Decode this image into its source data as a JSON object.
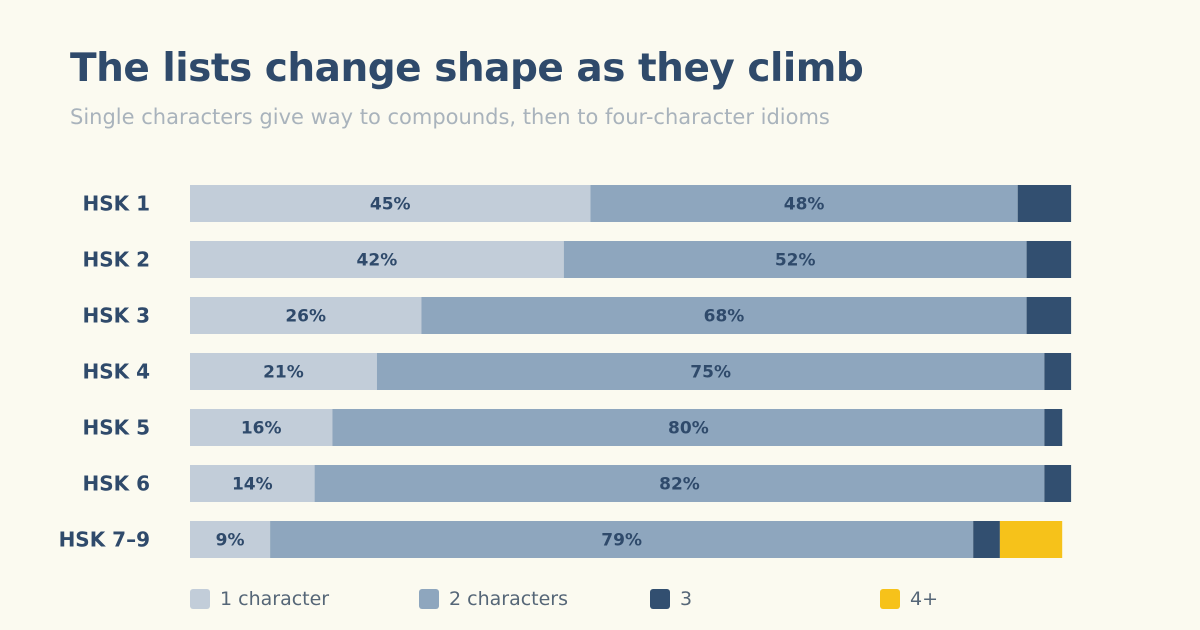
{
  "title": "The lists change shape as they climb",
  "subtitle": "Single characters give way to compounds, then to four-character idioms",
  "chart_data": {
    "type": "bar",
    "orientation": "horizontal",
    "stacked": true,
    "title": "The lists change shape as they climb",
    "subtitle": "Single characters give way to compounds, then to four-character idioms",
    "categories": [
      "HSK 1",
      "HSK 2",
      "HSK 3",
      "HSK 4",
      "HSK 5",
      "HSK 6",
      "HSK 7–9"
    ],
    "series": [
      {
        "name": "1 character",
        "color": "#c2cdd9",
        "values": [
          45,
          42,
          26,
          21,
          16,
          14,
          9
        ]
      },
      {
        "name": "2 characters",
        "color": "#8ea6be",
        "values": [
          48,
          52,
          68,
          75,
          80,
          82,
          79
        ]
      },
      {
        "name": "3",
        "color": "#324f70",
        "values": [
          6,
          5,
          5,
          3,
          2,
          3,
          3
        ]
      },
      {
        "name": "4+",
        "color": "#f6c21a",
        "values": [
          0,
          0,
          0,
          0,
          0,
          0,
          7
        ]
      }
    ],
    "data_labels": [
      [
        "45%",
        "42%",
        "26%",
        "21%",
        "16%",
        "14%",
        "9%"
      ],
      [
        "48%",
        "52%",
        "68%",
        "75%",
        "80%",
        "82%",
        "79%"
      ]
    ],
    "xlim": [
      0,
      100
    ],
    "unit": "%",
    "grid": false,
    "legend_position": "bottom"
  }
}
